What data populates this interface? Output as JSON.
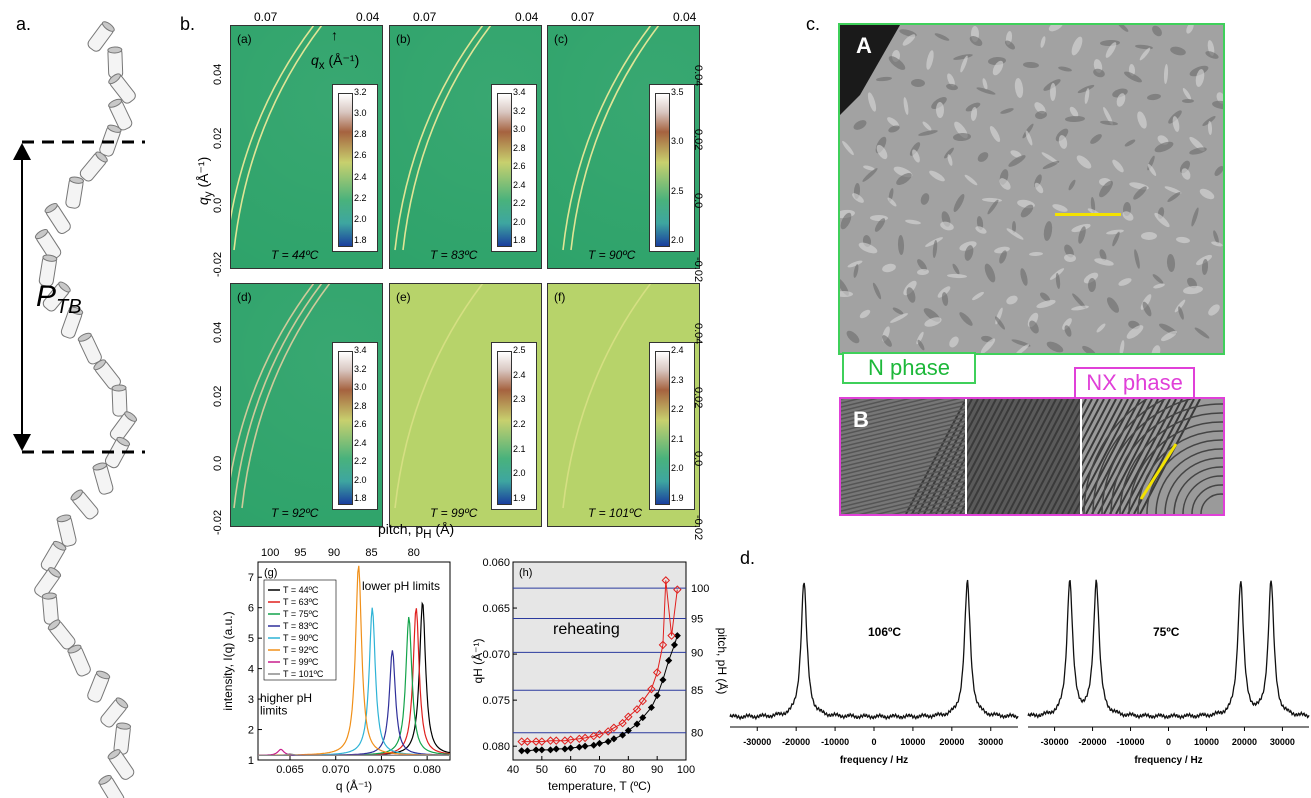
{
  "panel_labels": {
    "a": "a.",
    "b": "b.",
    "c": "c.",
    "d": "d."
  },
  "panel_a": {
    "pitch_label": "P",
    "pitch_sub": "TB"
  },
  "panel_b": {
    "top_ticks": [
      "0.07",
      "0.04",
      "0.07",
      "0.04",
      "0.07",
      "0.04"
    ],
    "qx_label": "q",
    "qx_sub": "x",
    "qx_unit": "(Å⁻¹)",
    "qy_label": "q",
    "qy_sub": "y",
    "qy_unit": "(Å⁻¹)",
    "ytick_left": [
      "0.04",
      "0.02",
      "0.0",
      "-0.02"
    ],
    "ytick_right": [
      "0.04",
      "0.02",
      "0.0",
      "-0.02"
    ],
    "subpanels": [
      {
        "tag": "(a)",
        "temp": "T = 44ºC",
        "cbar": [
          "3.2",
          "3.0",
          "2.8",
          "2.6",
          "2.4",
          "2.2",
          "2.0",
          "1.8"
        ]
      },
      {
        "tag": "(b)",
        "temp": "T = 83ºC",
        "cbar": [
          "3.4",
          "3.2",
          "3.0",
          "2.8",
          "2.6",
          "2.4",
          "2.2",
          "2.0",
          "1.8"
        ]
      },
      {
        "tag": "(c)",
        "temp": "T = 90ºC",
        "cbar": [
          "3.5",
          "3.0",
          "2.5",
          "2.0"
        ]
      },
      {
        "tag": "(d)",
        "temp": "T = 92ºC",
        "cbar": [
          "3.4",
          "3.2",
          "3.0",
          "2.8",
          "2.6",
          "2.4",
          "2.2",
          "2.0",
          "1.8"
        ]
      },
      {
        "tag": "(e)",
        "temp": "T = 99ºC",
        "cbar": [
          "2.5",
          "2.4",
          "2.3",
          "2.2",
          "2.1",
          "2.0",
          "1.9"
        ]
      },
      {
        "tag": "(f)",
        "temp": "T = 101ºC",
        "cbar": [
          "2.4",
          "2.3",
          "2.2",
          "2.1",
          "2.0",
          "1.9"
        ]
      }
    ],
    "pitch_axis": "pitch, p",
    "pitch_sub": "H",
    "pitch_unit": "(Å)"
  },
  "chart_g": {
    "tag": "(g)",
    "top_ticks": [
      "100",
      "95",
      "90",
      "85",
      "80"
    ],
    "xlabel": "q (Å⁻¹)",
    "ylabel": "intensity, I(q) (a.u.)",
    "xticks": [
      "0.065",
      "0.070",
      "0.075",
      "0.080"
    ],
    "yticks": [
      "1",
      "2",
      "3",
      "4",
      "5",
      "6",
      "7"
    ],
    "legend": [
      "T = 44ºC",
      "T = 63ºC",
      "T = 75ºC",
      "T = 83ºC",
      "T = 90ºC",
      "T = 92ºC",
      "T = 99ºC",
      "T = 101ºC"
    ],
    "colors": [
      "#000000",
      "#e0201e",
      "#13a34a",
      "#2f2f9a",
      "#2eb3d6",
      "#f0901a",
      "#c81e8c",
      "#8a8a8a"
    ],
    "ann_lower": "lower p",
    "ann_lower_sub": "H",
    "ann_lower_end": "limits",
    "ann_higher": "higher p",
    "ann_higher_sub": "H",
    "ann_higher_end": "limits"
  },
  "chart_h": {
    "tag": "(h)",
    "ylabel": "q",
    "ylabel_sub": "H",
    "ylabel_unit": "(Å⁻¹)",
    "y2label": "pitch, p",
    "y2label_sub": "H",
    "y2label_unit": "(Å)",
    "xlabel": "temperature, T (ºC)",
    "xticks": [
      "40",
      "50",
      "60",
      "70",
      "80",
      "90",
      "100"
    ],
    "yticks": [
      "0.060",
      "0.065",
      "0.070",
      "0.075",
      "0.080"
    ],
    "y2ticks": [
      "100",
      "95",
      "90",
      "85",
      "80"
    ],
    "annotation": "reheating"
  },
  "chart_data": [
    {
      "type": "line",
      "title": "",
      "xlabel": "q (Å⁻¹)",
      "ylabel": "intensity, I(q) (a.u.)",
      "xlim": [
        0.0615,
        0.0825
      ],
      "ylim": [
        1,
        7.5
      ],
      "series": [
        {
          "name": "T = 44ºC",
          "peak_q": 0.0795,
          "peak_i": 6.2
        },
        {
          "name": "T = 63ºC",
          "peak_q": 0.0788,
          "peak_i": 6.0
        },
        {
          "name": "T = 75ºC",
          "peak_q": 0.078,
          "peak_i": 5.7
        },
        {
          "name": "T = 83ºC",
          "peak_q": 0.0762,
          "peak_i": 4.6
        },
        {
          "name": "T = 90ºC",
          "peak_q": 0.074,
          "peak_i": 6.0
        },
        {
          "name": "T = 92ºC",
          "peak_q": 0.0725,
          "peak_i": 7.4
        },
        {
          "name": "T = 99ºC",
          "peak_q": 0.064,
          "peak_i": 1.35
        },
        {
          "name": "T = 101ºC",
          "peak_q": 0.065,
          "peak_i": 1.2
        }
      ]
    },
    {
      "type": "scatter",
      "title": "",
      "xlabel": "temperature, T (ºC)",
      "ylabel": "qH (Å⁻¹)",
      "xlim": [
        40,
        100
      ],
      "ylim": [
        0.0815,
        0.06
      ],
      "series": [
        {
          "x": [
            43,
            45,
            48,
            50,
            53,
            55,
            58,
            60,
            63,
            65,
            68,
            70,
            73,
            75,
            78,
            80,
            83,
            85,
            88,
            90,
            92,
            94,
            96,
            97
          ],
          "y": [
            0.0805,
            0.0805,
            0.0804,
            0.0804,
            0.0804,
            0.0803,
            0.0803,
            0.0802,
            0.0801,
            0.08,
            0.0799,
            0.0797,
            0.0795,
            0.0792,
            0.0788,
            0.0783,
            0.0776,
            0.0769,
            0.0758,
            0.0745,
            0.0728,
            0.0707,
            0.069,
            0.068
          ]
        },
        {
          "x": [
            43,
            45,
            48,
            50,
            53,
            55,
            58,
            60,
            63,
            65,
            68,
            70,
            73,
            75,
            78,
            80,
            83,
            85,
            88,
            90,
            92,
            93,
            95,
            97
          ],
          "y": [
            0.0795,
            0.0795,
            0.0795,
            0.0795,
            0.0794,
            0.0794,
            0.0794,
            0.0793,
            0.0792,
            0.0791,
            0.0789,
            0.0787,
            0.0784,
            0.078,
            0.0775,
            0.0768,
            0.076,
            0.0751,
            0.0738,
            0.072,
            0.069,
            0.062,
            0.068,
            0.063
          ]
        }
      ]
    },
    {
      "type": "line",
      "title": "106ºC",
      "xlabel": "frequency / Hz",
      "ylabel": "",
      "xticks": [
        "-30000",
        "-20000",
        "-10000",
        "0",
        "10000",
        "20000",
        "30000"
      ],
      "peaks_hz": [
        -18000,
        24000
      ]
    },
    {
      "type": "line",
      "title": "75ºC",
      "xlabel": "frequency / Hz",
      "ylabel": "",
      "xticks": [
        "-30000",
        "-20000",
        "-10000",
        "0",
        "10000",
        "20000",
        "30000"
      ],
      "peaks_hz": [
        -26000,
        -19000,
        19000,
        27000
      ]
    }
  ],
  "panel_c": {
    "img_a_label": "A",
    "img_b_label": "B",
    "n_phase": "N phase",
    "nx_phase": "NX phase"
  },
  "panel_d": {
    "temp_left": "106ºC",
    "temp_right": "75ºC",
    "xlabel": "frequency / Hz",
    "xticks": [
      "-30000",
      "-20000",
      "-10000",
      "0",
      "10000",
      "20000",
      "30000"
    ]
  }
}
